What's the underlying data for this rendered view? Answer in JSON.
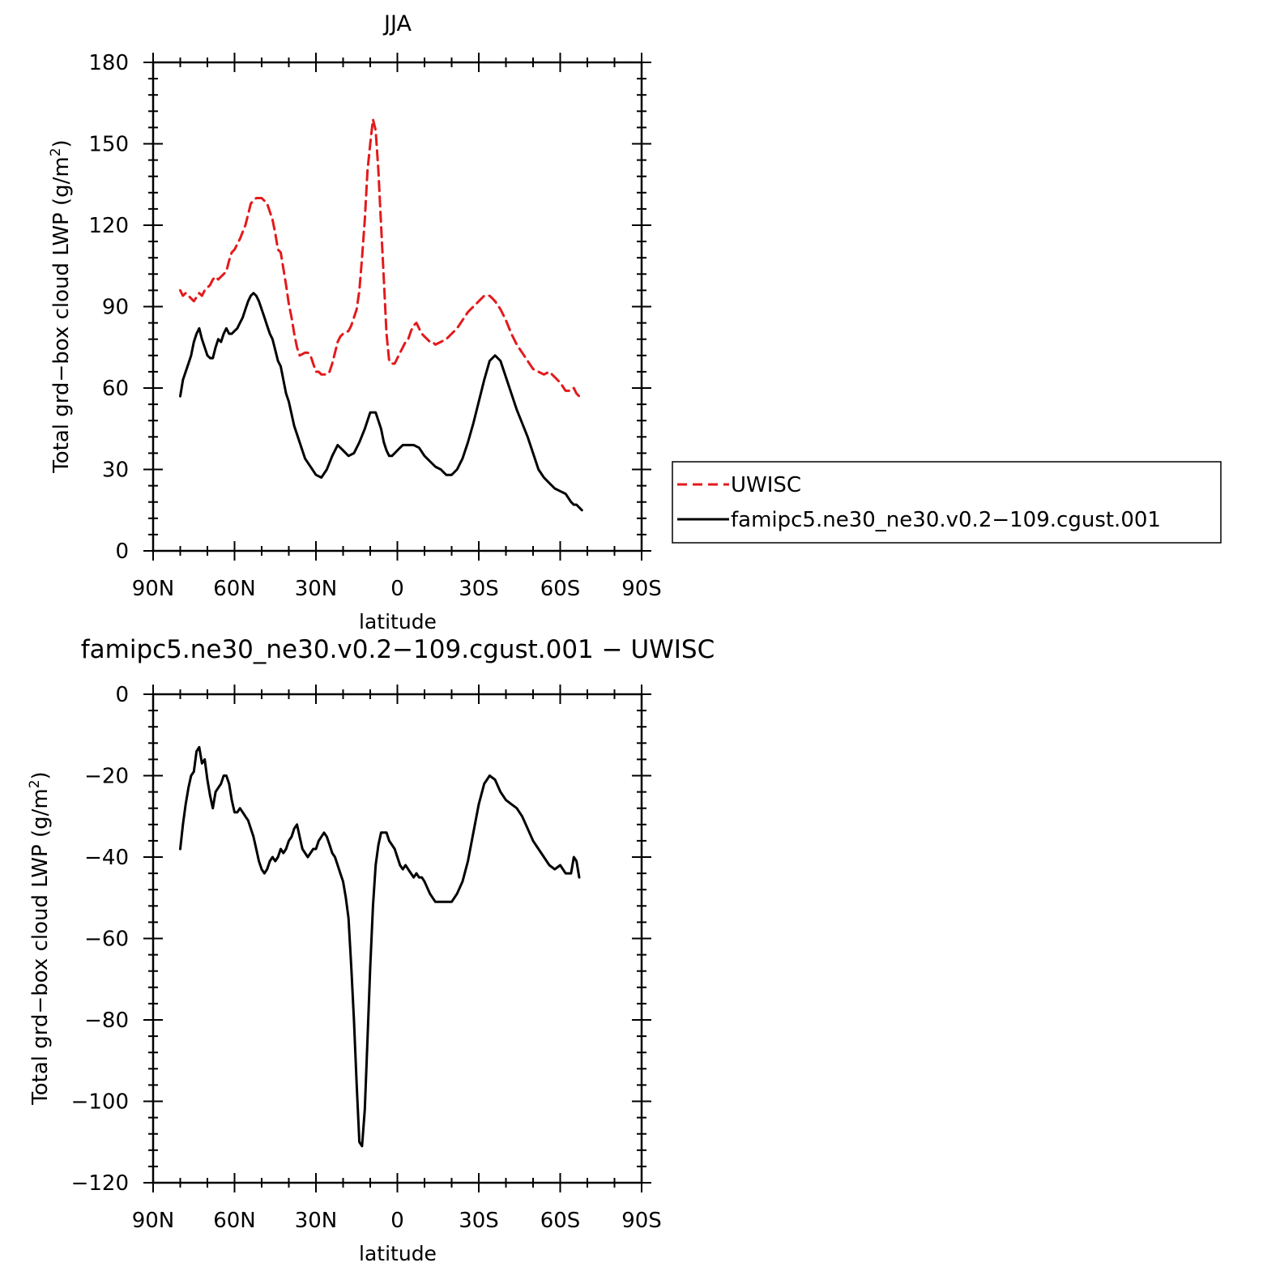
{
  "chart_data": [
    {
      "type": "line",
      "title": "JJA",
      "xlabel": "latitude",
      "ylabel_main": "Total grd−box cloud LWP (g/m",
      "ylabel_sup": "2",
      "ylabel_close": ")",
      "xlim": [
        90,
        -90
      ],
      "ylim": [
        0,
        180
      ],
      "x_ticks": [
        90,
        60,
        30,
        0,
        -30,
        -60,
        -90
      ],
      "x_tick_labels": [
        "90N",
        "60N",
        "30N",
        "0",
        "30S",
        "60S",
        "90S"
      ],
      "y_ticks": [
        0,
        30,
        60,
        90,
        120,
        150,
        180
      ],
      "y_tick_labels": [
        "0",
        "30",
        "60",
        "90",
        "120",
        "150",
        "180"
      ],
      "legend": {
        "placement": "right",
        "entries": [
          "UWISC",
          "famipc5.ne30_ne30.v0.2−109.cgust.001"
        ]
      },
      "series": [
        {
          "name": "UWISC",
          "color": "#e31a1c",
          "dash": true,
          "x": [
            80,
            79,
            78,
            77,
            75,
            73,
            72,
            71,
            69,
            68,
            67,
            66,
            65,
            64,
            63,
            62,
            61,
            60,
            58,
            56,
            55,
            54,
            53,
            52,
            51,
            50,
            49,
            48,
            47,
            46,
            45,
            44,
            43,
            42,
            41,
            40,
            39,
            38,
            37,
            36,
            34,
            33,
            32,
            31,
            30,
            29,
            28,
            26,
            25,
            24,
            23,
            22,
            21,
            20,
            18,
            17,
            16,
            15,
            14,
            13,
            12,
            11,
            10,
            9,
            8,
            7,
            6,
            5,
            4,
            3,
            2,
            1,
            0,
            -1,
            -2,
            -3,
            -4,
            -5,
            -6,
            -7,
            -8,
            -9,
            -10,
            -11,
            -12,
            -13,
            -14,
            -16,
            -18,
            -20,
            -22,
            -24,
            -26,
            -28,
            -30,
            -32,
            -34,
            -36,
            -38,
            -40,
            -42,
            -44,
            -46,
            -48,
            -50,
            -52,
            -54,
            -56,
            -58,
            -60,
            -62,
            -64,
            -65,
            -66,
            -67,
            -68
          ],
          "y": [
            96,
            94,
            95,
            94,
            92,
            95,
            94,
            96,
            98,
            100,
            101,
            100,
            101,
            102,
            103,
            107,
            110,
            111,
            115,
            120,
            124,
            128,
            129,
            130,
            130,
            130,
            129,
            128,
            125,
            122,
            117,
            111,
            110,
            104,
            98,
            91,
            86,
            80,
            75,
            72,
            73,
            73,
            72,
            69,
            66,
            66,
            65,
            65,
            66,
            69,
            73,
            77,
            79,
            80,
            81,
            83,
            86,
            89,
            96,
            108,
            122,
            140,
            150,
            159,
            155,
            140,
            120,
            100,
            80,
            70,
            69,
            69,
            71,
            73,
            75,
            77,
            78,
            81,
            83,
            84,
            82,
            80,
            79,
            78,
            77,
            77,
            76,
            77,
            78,
            80,
            82,
            85,
            88,
            90,
            92,
            94,
            94,
            92,
            89,
            85,
            80,
            76,
            73,
            70,
            67,
            66,
            65,
            66,
            64,
            62,
            59,
            59,
            60,
            58,
            57,
            58
          ]
        },
        {
          "name": "famipc5.ne30_ne30.v0.2−109.cgust.001",
          "color": "#000000",
          "dash": false,
          "x": [
            80,
            79,
            78,
            77,
            76,
            75,
            74,
            73,
            72,
            71,
            70,
            69,
            68,
            67,
            66,
            65,
            64,
            63,
            62,
            61,
            60,
            59,
            58,
            57,
            56,
            55,
            54,
            53,
            52,
            51,
            50,
            49,
            48,
            47,
            46,
            45,
            44,
            43,
            42,
            41,
            40,
            38,
            36,
            34,
            32,
            30,
            28,
            26,
            24,
            22,
            20,
            18,
            16,
            14,
            12,
            10,
            8,
            6,
            5,
            4,
            3,
            2,
            1,
            0,
            -1,
            -2,
            -4,
            -6,
            -8,
            -10,
            -12,
            -14,
            -16,
            -18,
            -20,
            -22,
            -24,
            -26,
            -28,
            -30,
            -32,
            -34,
            -36,
            -38,
            -40,
            -42,
            -44,
            -46,
            -48,
            -50,
            -52,
            -54,
            -56,
            -58,
            -60,
            -62,
            -64,
            -65,
            -66,
            -67,
            -68
          ],
          "y": [
            57,
            63,
            66,
            69,
            72,
            77,
            80,
            82,
            78,
            75,
            72,
            71,
            71,
            75,
            78,
            77,
            80,
            82,
            80,
            80,
            81,
            82,
            84,
            86,
            89,
            92,
            94,
            95,
            94,
            92,
            89,
            86,
            83,
            80,
            78,
            74,
            70,
            68,
            63,
            58,
            55,
            46,
            40,
            34,
            31,
            28,
            27,
            30,
            35,
            39,
            37,
            35,
            36,
            40,
            45,
            51,
            51,
            45,
            40,
            37,
            35,
            35,
            36,
            37,
            38,
            39,
            39,
            39,
            38,
            35,
            33,
            31,
            30,
            28,
            28,
            30,
            34,
            40,
            47,
            55,
            63,
            70,
            72,
            70,
            64,
            58,
            52,
            47,
            42,
            36,
            30,
            27,
            25,
            23,
            22,
            21,
            18,
            17,
            17,
            16,
            15
          ]
        }
      ]
    },
    {
      "type": "line",
      "title": "famipc5.ne30_ne30.v0.2−109.cgust.001  −  UWISC",
      "xlabel": "latitude",
      "ylabel_main": "Total grd−box cloud LWP (g/m",
      "ylabel_sup": "2",
      "ylabel_close": ")",
      "xlim": [
        90,
        -90
      ],
      "ylim": [
        -120,
        0
      ],
      "x_ticks": [
        90,
        60,
        30,
        0,
        -30,
        -60,
        -90
      ],
      "x_tick_labels": [
        "90N",
        "60N",
        "30N",
        "0",
        "30S",
        "60S",
        "90S"
      ],
      "y_ticks": [
        0,
        -20,
        -40,
        -60,
        -80,
        -100,
        -120
      ],
      "y_tick_labels": [
        "0",
        "−20",
        "−40",
        "−60",
        "−80",
        "−100",
        "−120"
      ],
      "series": [
        {
          "color": "#000000",
          "dash": false,
          "x": [
            80,
            79,
            78,
            77,
            76,
            75,
            74,
            73,
            72,
            71,
            70,
            69,
            68,
            67,
            66,
            65,
            64,
            63,
            62,
            61,
            60,
            59,
            58,
            57,
            56,
            55,
            54,
            53,
            52,
            51,
            50,
            49,
            48,
            47,
            46,
            45,
            44,
            43,
            42,
            41,
            40,
            39,
            38,
            37,
            36,
            35,
            34,
            33,
            32,
            31,
            30,
            29,
            28,
            27,
            26,
            25,
            24,
            23,
            22,
            21,
            20,
            19,
            18,
            17,
            16,
            15,
            14,
            13,
            12,
            11,
            10,
            9,
            8,
            7,
            6,
            5,
            4,
            3,
            2,
            1,
            0,
            -1,
            -2,
            -3,
            -4,
            -5,
            -6,
            -7,
            -8,
            -9,
            -10,
            -12,
            -14,
            -16,
            -18,
            -20,
            -22,
            -24,
            -26,
            -28,
            -30,
            -32,
            -34,
            -36,
            -38,
            -40,
            -42,
            -44,
            -46,
            -48,
            -50,
            -52,
            -54,
            -56,
            -58,
            -60,
            -62,
            -64,
            -65,
            -66,
            -67
          ],
          "y": [
            -38,
            -32,
            -27,
            -23,
            -20,
            -19,
            -14,
            -13,
            -17,
            -16,
            -21,
            -25,
            -28,
            -24,
            -23,
            -22,
            -20,
            -20,
            -22,
            -26,
            -29,
            -29,
            -28,
            -29,
            -30,
            -31,
            -33,
            -35,
            -38,
            -41,
            -43,
            -44,
            -43,
            -41,
            -40,
            -41,
            -40,
            -38,
            -39,
            -38,
            -36,
            -35,
            -33,
            -32,
            -35,
            -38,
            -39,
            -40,
            -39,
            -38,
            -38,
            -36,
            -35,
            -34,
            -35,
            -37,
            -39,
            -40,
            -42,
            -44,
            -46,
            -50,
            -55,
            -67,
            -80,
            -96,
            -110,
            -111,
            -102,
            -85,
            -67,
            -52,
            -42,
            -37,
            -34,
            -34,
            -34,
            -36,
            -37,
            -38,
            -40,
            -42,
            -43,
            -42,
            -43,
            -44,
            -45,
            -44,
            -45,
            -45,
            -46,
            -49,
            -51,
            -51,
            -51,
            -51,
            -49,
            -46,
            -41,
            -34,
            -27,
            -22,
            -20,
            -21,
            -24,
            -26,
            -27,
            -28,
            -30,
            -33,
            -36,
            -38,
            -40,
            -42,
            -43,
            -42,
            -44,
            -44,
            -40,
            -41,
            -45
          ]
        }
      ]
    }
  ]
}
